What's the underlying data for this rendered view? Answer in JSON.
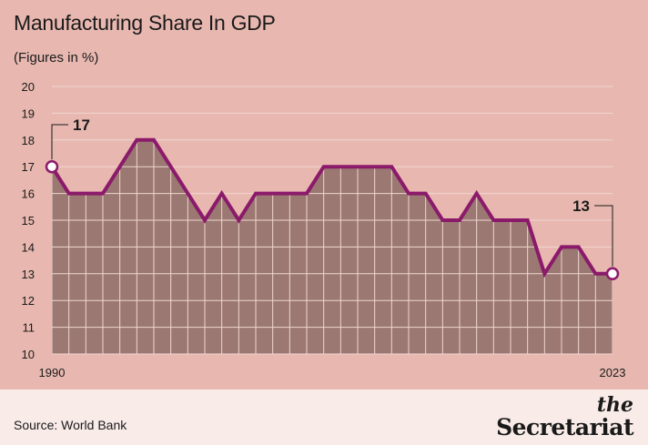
{
  "chart_data": {
    "type": "area",
    "title": "Manufacturing Share In GDP",
    "subtitle": "(Figures in %)",
    "x": [
      1990,
      1991,
      1992,
      1993,
      1994,
      1995,
      1996,
      1997,
      1998,
      1999,
      2000,
      2001,
      2002,
      2003,
      2004,
      2005,
      2006,
      2007,
      2008,
      2009,
      2010,
      2011,
      2012,
      2013,
      2014,
      2015,
      2016,
      2017,
      2018,
      2019,
      2020,
      2021,
      2022,
      2023
    ],
    "values": [
      17,
      16,
      16,
      16,
      17,
      18,
      18,
      17,
      16,
      15,
      16,
      15,
      16,
      16,
      16,
      16,
      17,
      17,
      17,
      17,
      17,
      16,
      16,
      15,
      15,
      16,
      15,
      15,
      15,
      13,
      14,
      14,
      13,
      13
    ],
    "ylim": [
      10,
      20
    ],
    "y_ticks": [
      "10",
      "11",
      "12",
      "13",
      "14",
      "15",
      "16",
      "17",
      "18",
      "19",
      "20"
    ],
    "x_tick_labels": [
      "1990",
      "2023"
    ],
    "annotations": [
      {
        "x": 1990,
        "label": "17"
      },
      {
        "x": 2023,
        "label": "13"
      }
    ],
    "grid": true,
    "colors": {
      "line": "#8b1a6b",
      "fill": "#9b7872",
      "grid": "#f0d6d0",
      "background": "#e8b8b0"
    }
  },
  "footer": {
    "source": "Source: World Bank",
    "logo_the": "the",
    "logo_name": "Secretariat"
  }
}
